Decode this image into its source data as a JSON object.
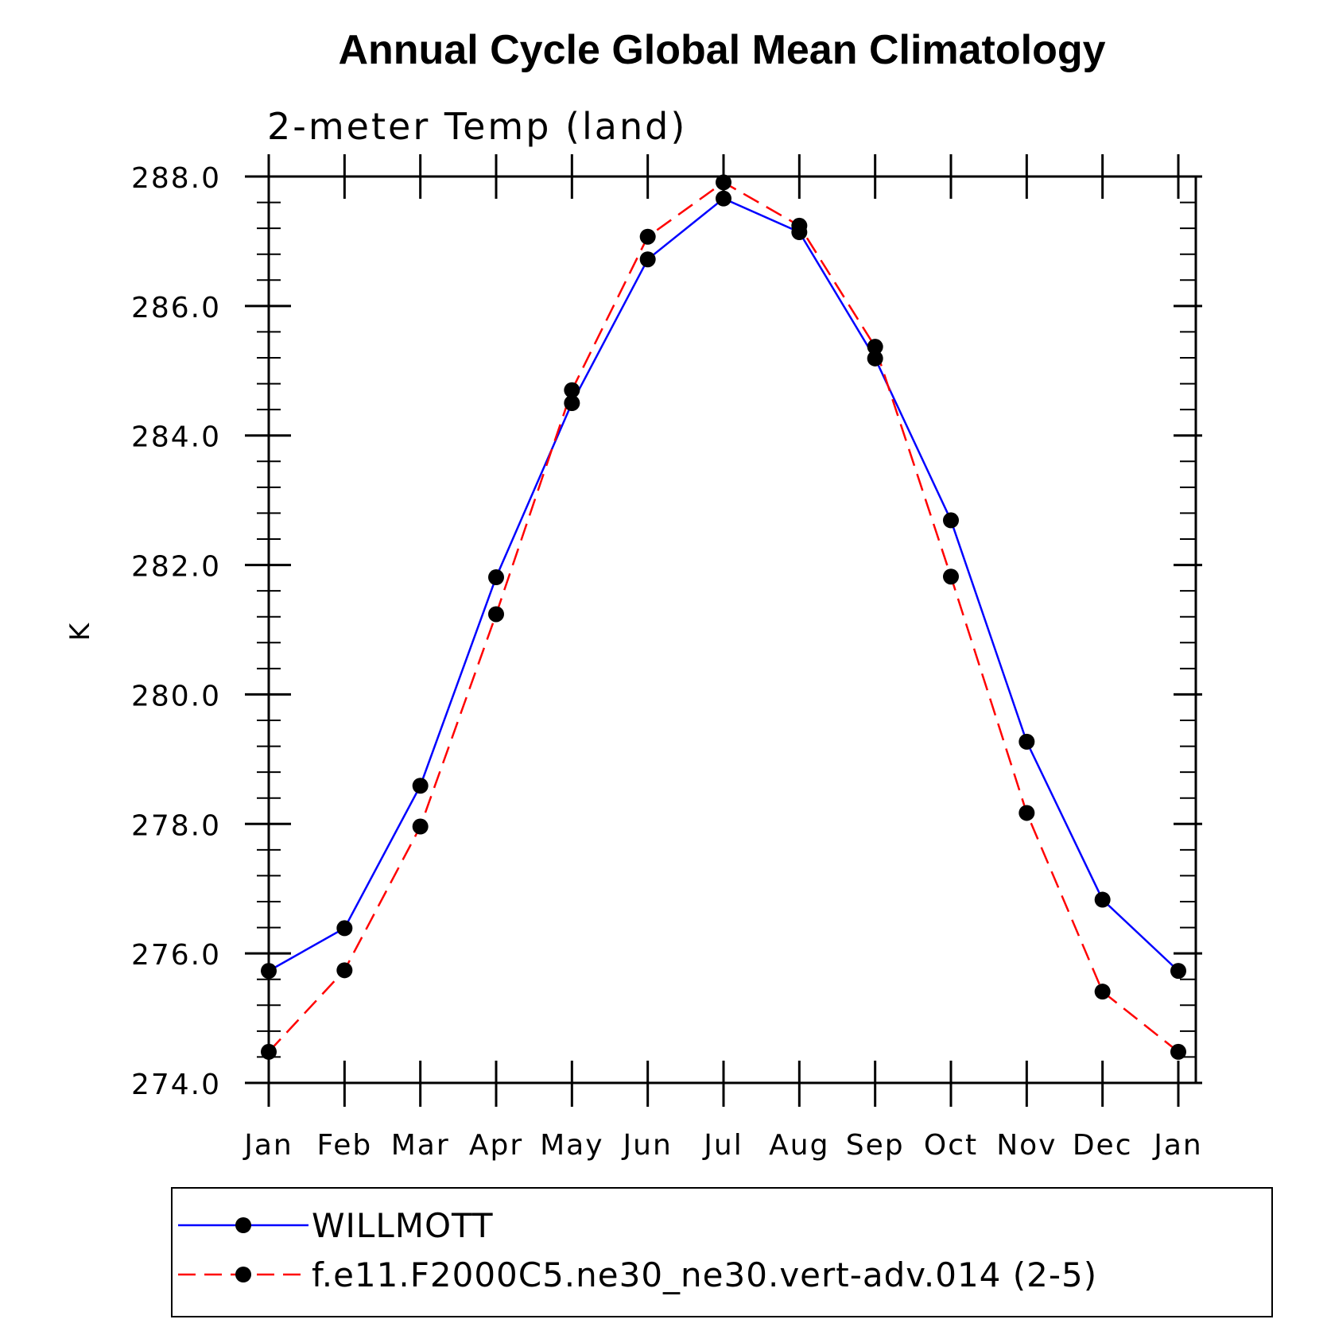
{
  "chart_data": {
    "type": "line",
    "title": "Annual Cycle Global Mean Climatology",
    "subtitle": "2-meter Temp (land)",
    "ylabel": "K",
    "xlabel": "",
    "categories": [
      "Jan",
      "Feb",
      "Mar",
      "Apr",
      "May",
      "Jun",
      "Jul",
      "Aug",
      "Sep",
      "Oct",
      "Nov",
      "Dec",
      "Jan"
    ],
    "ylim": [
      274.0,
      288.0
    ],
    "yticks": [
      "274.0",
      "276.0",
      "278.0",
      "280.0",
      "282.0",
      "284.0",
      "286.0",
      "288.0"
    ],
    "grid": false,
    "legend_position": "bottom",
    "series": [
      {
        "name": "WILLMOTT",
        "color": "#0000ff",
        "line_style": "solid",
        "values": [
          275.73,
          276.39,
          278.59,
          281.81,
          284.5,
          286.72,
          287.66,
          287.14,
          285.19,
          282.69,
          279.27,
          276.83,
          275.73
        ]
      },
      {
        "name": "f.e11.F2000C5.ne30_ne30.vert-adv.014 (2-5)",
        "color": "#ff0000",
        "line_style": "dashed",
        "values": [
          274.48,
          275.74,
          277.96,
          281.24,
          284.7,
          287.07,
          287.91,
          287.24,
          285.37,
          281.82,
          278.17,
          275.41,
          274.48
        ]
      }
    ]
  }
}
